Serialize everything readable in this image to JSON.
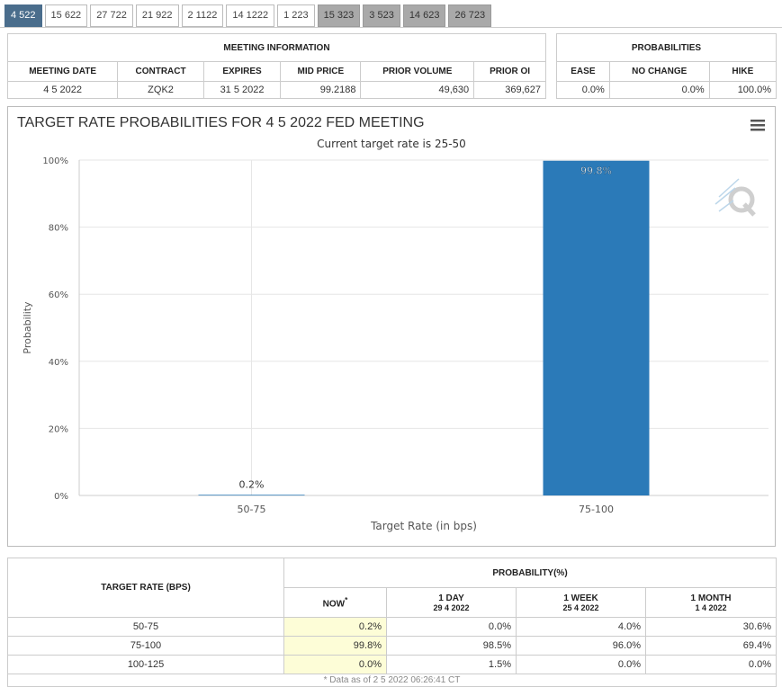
{
  "tabs": [
    {
      "label": "4 522",
      "state": "active"
    },
    {
      "label": "15 622",
      "state": "normal"
    },
    {
      "label": "27 722",
      "state": "normal"
    },
    {
      "label": "21 922",
      "state": "normal"
    },
    {
      "label": "2 1122",
      "state": "normal"
    },
    {
      "label": "14 1222",
      "state": "normal"
    },
    {
      "label": "1 223",
      "state": "normal"
    },
    {
      "label": "15 323",
      "state": "grey"
    },
    {
      "label": "3 523",
      "state": "grey"
    },
    {
      "label": "14 623",
      "state": "grey"
    },
    {
      "label": "26 723",
      "state": "grey"
    }
  ],
  "meeting": {
    "title": "MEETING INFORMATION",
    "headers": [
      "MEETING DATE",
      "CONTRACT",
      "EXPIRES",
      "MID PRICE",
      "PRIOR VOLUME",
      "PRIOR OI"
    ],
    "values": [
      "4 5 2022",
      "ZQK2",
      "31 5 2022",
      "99.2188",
      "49,630",
      "369,627"
    ]
  },
  "probabilities": {
    "title": "PROBABILITIES",
    "headers": [
      "EASE",
      "NO CHANGE",
      "HIKE"
    ],
    "values": [
      "0.0%",
      "0.0%",
      "100.0%"
    ]
  },
  "chart_data": {
    "type": "bar",
    "title": "TARGET RATE PROBABILITIES FOR 4 5 2022 FED MEETING",
    "subtitle": "Current target rate is 25-50",
    "xlabel": "Target Rate (in bps)",
    "ylabel": "Probability",
    "categories": [
      "50-75",
      "75-100"
    ],
    "values": [
      0.2,
      99.8
    ],
    "data_labels": [
      "0.2%",
      "99.8%"
    ],
    "ylim": [
      0,
      100
    ],
    "yticks": [
      "0%",
      "20%",
      "40%",
      "60%",
      "80%",
      "100%"
    ],
    "ytick_values": [
      0,
      20,
      40,
      60,
      80,
      100
    ],
    "bar_color": "#2b7ab8",
    "grid": true,
    "legend": "none"
  },
  "target_table": {
    "row_header": "TARGET RATE (BPS)",
    "group_header": "PROBABILITY(%)",
    "columns": [
      {
        "label": "NOW",
        "mark": "*",
        "date": ""
      },
      {
        "label": "1 DAY",
        "date": "29 4 2022"
      },
      {
        "label": "1 WEEK",
        "date": "25 4 2022"
      },
      {
        "label": "1 MONTH",
        "date": "1 4 2022"
      }
    ],
    "rows": [
      {
        "rate": "50-75",
        "values": [
          "0.2%",
          "0.0%",
          "4.0%",
          "30.6%"
        ]
      },
      {
        "rate": "75-100",
        "values": [
          "99.8%",
          "98.5%",
          "96.0%",
          "69.4%"
        ]
      },
      {
        "rate": "100-125",
        "values": [
          "0.0%",
          "1.5%",
          "0.0%",
          "0.0%"
        ]
      }
    ],
    "footnote": "* Data as of 2 5 2022 06:26:41 CT"
  }
}
